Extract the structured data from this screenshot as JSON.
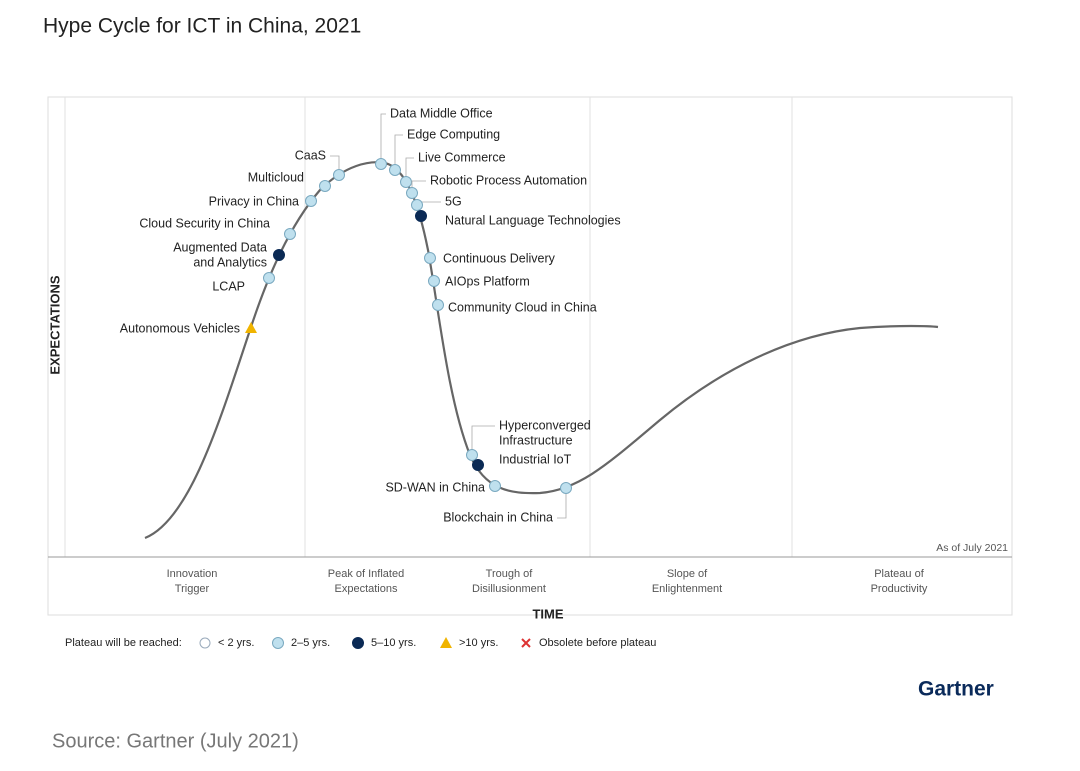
{
  "title": "Hype Cycle for ICT in China, 2021",
  "y_axis_label": "EXPECTATIONS",
  "x_axis_label": "TIME",
  "as_of": "As of July 2021",
  "phases": [
    [
      "Innovation",
      "Trigger"
    ],
    [
      "Peak of Inflated",
      "Expectations"
    ],
    [
      "Trough of",
      "Disillusionment"
    ],
    [
      "Slope of",
      "Enlightenment"
    ],
    [
      "Plateau of",
      "Productivity"
    ]
  ],
  "technologies": [
    {
      "lines": [
        "Data Middle Office"
      ],
      "plateau": 1
    },
    {
      "lines": [
        "Edge Computing"
      ],
      "plateau": 1
    },
    {
      "lines": [
        "Live Commerce"
      ],
      "plateau": 1
    },
    {
      "lines": [
        "Robotic Process Automation"
      ],
      "plateau": 1
    },
    {
      "lines": [
        "5G"
      ],
      "plateau": 1
    },
    {
      "lines": [
        "Natural Language Technologies"
      ],
      "plateau": 2
    },
    {
      "lines": [
        "Continuous Delivery"
      ],
      "plateau": 1
    },
    {
      "lines": [
        "AIOps Platform"
      ],
      "plateau": 1
    },
    {
      "lines": [
        "Community Cloud in China"
      ],
      "plateau": 1
    },
    {
      "lines": [
        "Hyperconverged",
        "Infrastructure"
      ],
      "plateau": 1
    },
    {
      "lines": [
        "Industrial IoT"
      ],
      "plateau": 2
    },
    {
      "lines": [
        "SD-WAN in China"
      ],
      "plateau": 1
    },
    {
      "lines": [
        "Blockchain in China"
      ],
      "plateau": 1
    },
    {
      "lines": [
        "CaaS"
      ],
      "plateau": 1
    },
    {
      "lines": [
        "Multicloud"
      ],
      "plateau": 1
    },
    {
      "lines": [
        "Privacy in China"
      ],
      "plateau": 1
    },
    {
      "lines": [
        "Cloud Security in China"
      ],
      "plateau": 1
    },
    {
      "lines": [
        "Augmented Data",
        "and Analytics"
      ],
      "plateau": 2
    },
    {
      "lines": [
        "LCAP"
      ],
      "plateau": 1
    },
    {
      "lines": [
        "Autonomous Vehicles"
      ],
      "plateau": 3
    }
  ],
  "legend": {
    "title": "Plateau will be reached:",
    "items": [
      "< 2 yrs.",
      "2–5 yrs.",
      "5–10 yrs.",
      ">10 yrs.",
      "Obsolete before plateau"
    ]
  },
  "brand": "Gartner",
  "source": "Source: Gartner (July 2021)"
}
